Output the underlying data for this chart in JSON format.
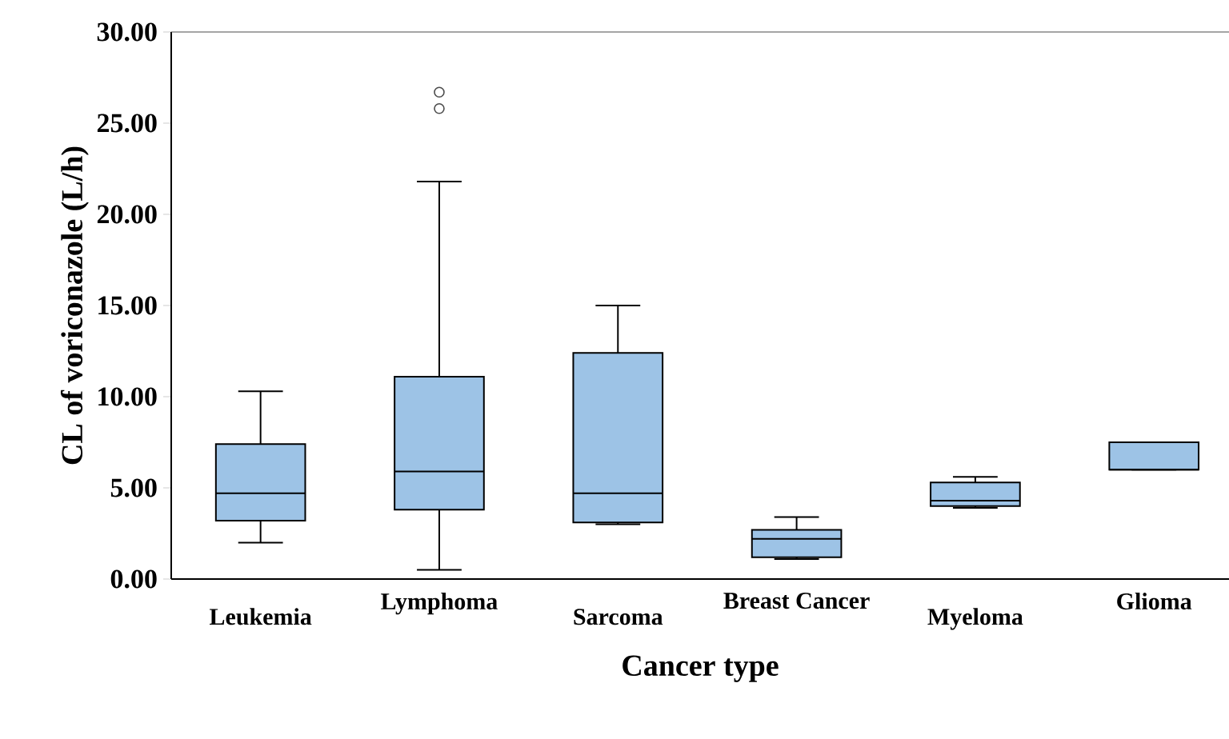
{
  "chart_data": {
    "type": "box",
    "xlabel": "Cancer type",
    "ylabel": "CL of voriconazole (L/h)",
    "categories": [
      "Leukemia",
      "Lymphoma",
      "Sarcoma",
      "Breast Cancer",
      "Myeloma",
      "Glioma"
    ],
    "color": "#9dc3e6",
    "marker": "circle",
    "boxes": [
      {
        "low": 2.0,
        "q1": 3.2,
        "median": 4.7,
        "q3": 7.4,
        "high": 10.3
      },
      {
        "low": 0.5,
        "q1": 3.8,
        "median": 5.9,
        "q3": 11.1,
        "high": 21.8,
        "outliers": [
          25.8,
          26.7
        ]
      },
      {
        "low": 3.0,
        "q1": 3.1,
        "median": 4.7,
        "q3": 12.4,
        "high": 15.0
      },
      {
        "low": 1.1,
        "q1": 1.2,
        "median": 2.2,
        "q3": 2.7,
        "high": 3.4
      },
      {
        "low": 3.9,
        "q1": 4.0,
        "median": 4.3,
        "q3": 5.3,
        "high": 5.6
      },
      {
        "low": 6.0,
        "q1": 6.0,
        "median": 6.0,
        "q3": 7.5,
        "high": 7.5
      }
    ],
    "ylim": [
      0,
      30
    ],
    "yticks": [
      {
        "value": 0,
        "label": "0.00"
      },
      {
        "value": 5,
        "label": "5.00"
      },
      {
        "value": 10,
        "label": "10.00"
      },
      {
        "value": 15,
        "label": "15.00"
      },
      {
        "value": 20,
        "label": "20.00"
      },
      {
        "value": 25,
        "label": "25.00"
      },
      {
        "value": 30,
        "label": "30.00"
      }
    ]
  }
}
